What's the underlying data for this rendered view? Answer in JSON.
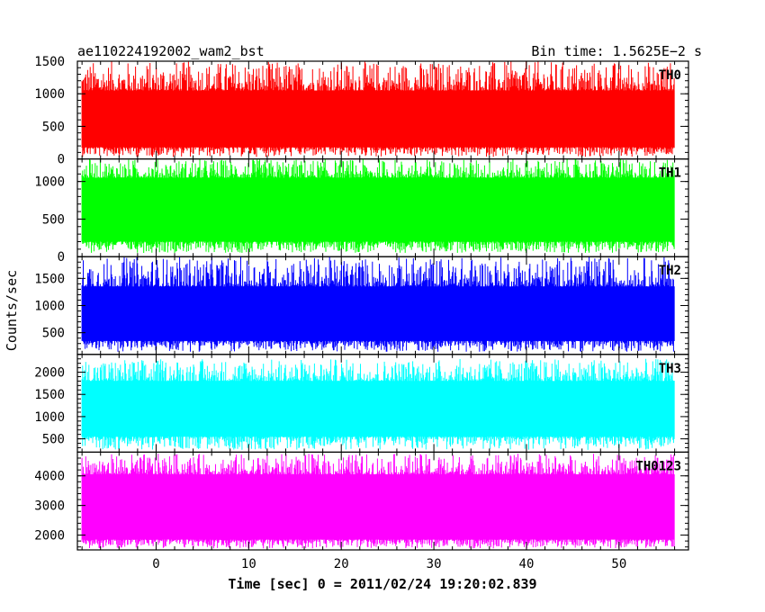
{
  "chart_data": {
    "type": "line",
    "title": "ae110224192002_wam2_bst",
    "subtitle": "Bin time: 1.5625E−2 s",
    "xlabel": "Time [sec] 0 = 2011/02/24 19:20:02.839",
    "ylabel": "Counts/sec",
    "xlim": [
      -8.5,
      57.5
    ],
    "x_ticks": [
      0,
      10,
      20,
      30,
      40,
      50
    ],
    "x_range_data": [
      -8,
      56
    ],
    "grid": false,
    "panels": [
      {
        "name": "TH0",
        "color": "#ff0000",
        "ylim": [
          0,
          1500
        ],
        "y_ticks": [
          0,
          500,
          1000,
          1500
        ],
        "data_band": {
          "min": 30,
          "low": 180,
          "mean": 600,
          "high": 1050,
          "max": 1500
        }
      },
      {
        "name": "TH1",
        "color": "#00ff00",
        "ylim": [
          0,
          1300
        ],
        "y_ticks": [
          0,
          500,
          1000
        ],
        "data_band": {
          "min": 50,
          "low": 200,
          "mean": 650,
          "high": 1050,
          "max": 1300
        }
      },
      {
        "name": "TH2",
        "color": "#0000ff",
        "ylim": [
          100,
          1900
        ],
        "y_ticks": [
          500,
          1000,
          1500
        ],
        "data_band": {
          "min": 150,
          "low": 350,
          "mean": 750,
          "high": 1350,
          "max": 1900
        }
      },
      {
        "name": "TH3",
        "color": "#00ffff",
        "ylim": [
          200,
          2400
        ],
        "y_ticks": [
          500,
          1000,
          1500,
          2000
        ],
        "data_band": {
          "min": 250,
          "low": 550,
          "mean": 1100,
          "high": 1800,
          "max": 2300
        }
      },
      {
        "name": "TH0123",
        "color": "#ff00ff",
        "ylim": [
          1500,
          4800
        ],
        "y_ticks": [
          2000,
          3000,
          4000
        ],
        "data_band": {
          "min": 1550,
          "low": 1850,
          "mean": 2800,
          "high": 4050,
          "max": 4750
        }
      }
    ]
  }
}
